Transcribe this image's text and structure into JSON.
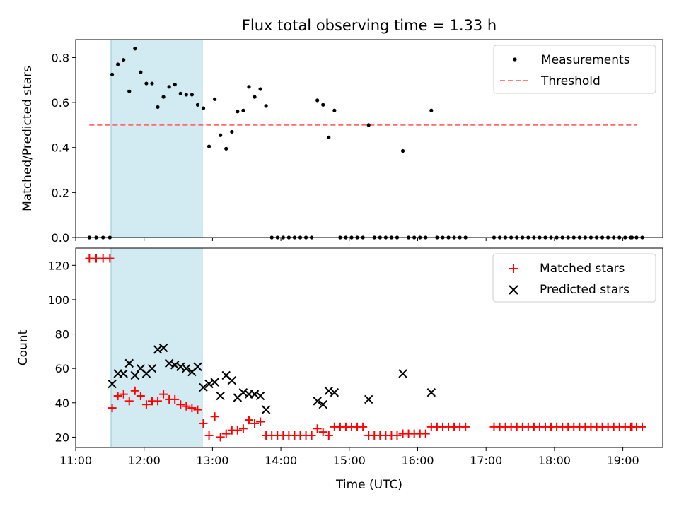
{
  "chart_data": [
    {
      "type": "scatter",
      "title": "Flux total observing time = 1.33 h",
      "xlabel": "",
      "ylabel": "Matched/Predicted stars",
      "xlim": [
        "11:00",
        "19:35"
      ],
      "ylim": [
        0,
        0.88
      ],
      "yticks": [
        0.0,
        0.2,
        0.4,
        0.6,
        0.8
      ],
      "ytick_labels": [
        "0.0",
        "0.2",
        "0.4",
        "0.6",
        "0.8"
      ],
      "shaded_interval": {
        "start": "11:31",
        "end": "12:51",
        "color": "#add8e6"
      },
      "legend": {
        "position": "top-right",
        "entries": [
          {
            "label": "Measurements",
            "marker": "dot",
            "color": "#000000"
          },
          {
            "label": "Threshold",
            "marker": "dashed-line",
            "color": "#ff6b6b"
          }
        ]
      },
      "threshold": {
        "value": 0.5,
        "x_start": "11:12",
        "x_end": "19:12",
        "color": "#ff6b6b"
      },
      "series": [
        {
          "name": "Measurements",
          "color": "#000000",
          "points": [
            [
              "11:12",
              0.0
            ],
            [
              "11:18",
              0.0
            ],
            [
              "11:24",
              0.0
            ],
            [
              "11:30",
              0.0
            ],
            [
              "11:32",
              0.725
            ],
            [
              "11:37",
              0.77
            ],
            [
              "11:42",
              0.79
            ],
            [
              "11:47",
              0.65
            ],
            [
              "11:52",
              0.84
            ],
            [
              "11:57",
              0.735
            ],
            [
              "12:02",
              0.685
            ],
            [
              "12:07",
              0.685
            ],
            [
              "12:12",
              0.58
            ],
            [
              "12:17",
              0.625
            ],
            [
              "12:22",
              0.67
            ],
            [
              "12:27",
              0.68
            ],
            [
              "12:32",
              0.64
            ],
            [
              "12:37",
              0.635
            ],
            [
              "12:42",
              0.635
            ],
            [
              "12:47",
              0.59
            ],
            [
              "12:52",
              0.575
            ],
            [
              "12:57",
              0.405
            ],
            [
              "13:02",
              0.615
            ],
            [
              "13:07",
              0.455
            ],
            [
              "13:12",
              0.395
            ],
            [
              "13:17",
              0.47
            ],
            [
              "13:22",
              0.56
            ],
            [
              "13:27",
              0.565
            ],
            [
              "13:32",
              0.67
            ],
            [
              "13:37",
              0.625
            ],
            [
              "13:42",
              0.66
            ],
            [
              "13:47",
              0.585
            ],
            [
              "13:52",
              0.0
            ],
            [
              "13:57",
              0.0
            ],
            [
              "14:02",
              0.0
            ],
            [
              "14:07",
              0.0
            ],
            [
              "14:12",
              0.0
            ],
            [
              "14:17",
              0.0
            ],
            [
              "14:22",
              0.0
            ],
            [
              "14:27",
              0.0
            ],
            [
              "14:32",
              0.61
            ],
            [
              "14:37",
              0.59
            ],
            [
              "14:42",
              0.445
            ],
            [
              "14:47",
              0.565
            ],
            [
              "14:52",
              0.0
            ],
            [
              "14:57",
              0.0
            ],
            [
              "15:02",
              0.0
            ],
            [
              "15:07",
              0.0
            ],
            [
              "15:12",
              0.0
            ],
            [
              "15:17",
              0.5
            ],
            [
              "15:22",
              0.0
            ],
            [
              "15:27",
              0.0
            ],
            [
              "15:32",
              0.0
            ],
            [
              "15:37",
              0.0
            ],
            [
              "15:42",
              0.0
            ],
            [
              "15:47",
              0.385
            ],
            [
              "15:52",
              0.0
            ],
            [
              "15:57",
              0.0
            ],
            [
              "16:02",
              0.0
            ],
            [
              "16:07",
              0.0
            ],
            [
              "16:12",
              0.565
            ],
            [
              "16:17",
              0.0
            ],
            [
              "16:22",
              0.0
            ],
            [
              "16:27",
              0.0
            ],
            [
              "16:32",
              0.0
            ],
            [
              "16:37",
              0.0
            ],
            [
              "16:42",
              0.0
            ],
            [
              "17:07",
              0.0
            ],
            [
              "17:12",
              0.0
            ],
            [
              "17:17",
              0.0
            ],
            [
              "17:22",
              0.0
            ],
            [
              "17:27",
              0.0
            ],
            [
              "17:32",
              0.0
            ],
            [
              "17:37",
              0.0
            ],
            [
              "17:42",
              0.0
            ],
            [
              "17:47",
              0.0
            ],
            [
              "17:52",
              0.0
            ],
            [
              "17:57",
              0.0
            ],
            [
              "18:02",
              0.0
            ],
            [
              "18:07",
              0.0
            ],
            [
              "18:12",
              0.0
            ],
            [
              "18:17",
              0.0
            ],
            [
              "18:22",
              0.0
            ],
            [
              "18:27",
              0.0
            ],
            [
              "18:32",
              0.0
            ],
            [
              "18:37",
              0.0
            ],
            [
              "18:42",
              0.0
            ],
            [
              "18:47",
              0.0
            ],
            [
              "18:52",
              0.0
            ],
            [
              "18:57",
              0.0
            ],
            [
              "19:02",
              0.0
            ],
            [
              "19:07",
              0.0
            ],
            [
              "19:08",
              0.0
            ],
            [
              "19:12",
              0.0
            ],
            [
              "19:17",
              0.0
            ]
          ]
        }
      ]
    },
    {
      "type": "scatter",
      "title": "",
      "xlabel": "Time (UTC)",
      "ylabel": "Count",
      "xlim": [
        "11:00",
        "19:35"
      ],
      "ylim": [
        14,
        130
      ],
      "yticks": [
        20,
        40,
        60,
        80,
        100,
        120
      ],
      "ytick_labels": [
        "20",
        "40",
        "60",
        "80",
        "100",
        "120"
      ],
      "xticks": [
        "11:00",
        "12:00",
        "13:00",
        "14:00",
        "15:00",
        "16:00",
        "17:00",
        "18:00",
        "19:00"
      ],
      "xtick_labels": [
        "11:00",
        "12:00",
        "13:00",
        "14:00",
        "15:00",
        "16:00",
        "17:00",
        "18:00",
        "19:00"
      ],
      "shaded_interval": {
        "start": "11:31",
        "end": "12:51",
        "color": "#add8e6"
      },
      "legend": {
        "position": "top-right",
        "entries": [
          {
            "label": "Matched stars",
            "marker": "plus",
            "color": "#ff0000"
          },
          {
            "label": "Predicted stars",
            "marker": "x",
            "color": "#000000"
          }
        ]
      },
      "series": [
        {
          "name": "Matched stars",
          "marker": "plus",
          "color": "#ff0000",
          "points": [
            [
              "11:12",
              124
            ],
            [
              "11:18",
              124
            ],
            [
              "11:24",
              124
            ],
            [
              "11:30",
              124
            ],
            [
              "11:32",
              37
            ],
            [
              "11:37",
              44
            ],
            [
              "11:42",
              45
            ],
            [
              "11:47",
              41
            ],
            [
              "11:52",
              47
            ],
            [
              "11:57",
              44
            ],
            [
              "12:02",
              39
            ],
            [
              "12:07",
              41
            ],
            [
              "12:12",
              41
            ],
            [
              "12:17",
              45
            ],
            [
              "12:22",
              42
            ],
            [
              "12:27",
              42
            ],
            [
              "12:32",
              39
            ],
            [
              "12:37",
              38
            ],
            [
              "12:42",
              37
            ],
            [
              "12:47",
              36
            ],
            [
              "12:52",
              28
            ],
            [
              "12:57",
              21
            ],
            [
              "13:02",
              32
            ],
            [
              "13:07",
              20
            ],
            [
              "13:12",
              22
            ],
            [
              "13:17",
              24
            ],
            [
              "13:22",
              24
            ],
            [
              "13:27",
              25
            ],
            [
              "13:32",
              30
            ],
            [
              "13:37",
              28
            ],
            [
              "13:42",
              29
            ],
            [
              "13:47",
              21
            ],
            [
              "13:52",
              21
            ],
            [
              "13:57",
              21
            ],
            [
              "14:02",
              21
            ],
            [
              "14:07",
              21
            ],
            [
              "14:12",
              21
            ],
            [
              "14:17",
              21
            ],
            [
              "14:22",
              21
            ],
            [
              "14:27",
              21
            ],
            [
              "14:32",
              25
            ],
            [
              "14:37",
              23
            ],
            [
              "14:42",
              21
            ],
            [
              "14:47",
              26
            ],
            [
              "14:52",
              26
            ],
            [
              "14:57",
              26
            ],
            [
              "15:02",
              26
            ],
            [
              "15:07",
              26
            ],
            [
              "15:12",
              26
            ],
            [
              "15:17",
              21
            ],
            [
              "15:22",
              21
            ],
            [
              "15:27",
              21
            ],
            [
              "15:32",
              21
            ],
            [
              "15:37",
              21
            ],
            [
              "15:42",
              21
            ],
            [
              "15:47",
              22
            ],
            [
              "15:52",
              22
            ],
            [
              "15:57",
              22
            ],
            [
              "16:02",
              22
            ],
            [
              "16:07",
              22
            ],
            [
              "16:12",
              26
            ],
            [
              "16:17",
              26
            ],
            [
              "16:22",
              26
            ],
            [
              "16:27",
              26
            ],
            [
              "16:32",
              26
            ],
            [
              "16:37",
              26
            ],
            [
              "16:42",
              26
            ],
            [
              "17:07",
              26
            ],
            [
              "17:12",
              26
            ],
            [
              "17:17",
              26
            ],
            [
              "17:22",
              26
            ],
            [
              "17:27",
              26
            ],
            [
              "17:32",
              26
            ],
            [
              "17:37",
              26
            ],
            [
              "17:42",
              26
            ],
            [
              "17:47",
              26
            ],
            [
              "17:52",
              26
            ],
            [
              "17:57",
              26
            ],
            [
              "18:02",
              26
            ],
            [
              "18:07",
              26
            ],
            [
              "18:12",
              26
            ],
            [
              "18:17",
              26
            ],
            [
              "18:22",
              26
            ],
            [
              "18:27",
              26
            ],
            [
              "18:32",
              26
            ],
            [
              "18:37",
              26
            ],
            [
              "18:42",
              26
            ],
            [
              "18:47",
              26
            ],
            [
              "18:52",
              26
            ],
            [
              "18:57",
              26
            ],
            [
              "19:02",
              26
            ],
            [
              "19:07",
              26
            ],
            [
              "19:08",
              26
            ],
            [
              "19:12",
              26
            ],
            [
              "19:17",
              26
            ]
          ]
        },
        {
          "name": "Predicted stars",
          "marker": "x",
          "color": "#000000",
          "points": [
            [
              "11:32",
              51
            ],
            [
              "11:37",
              57
            ],
            [
              "11:42",
              57
            ],
            [
              "11:47",
              63
            ],
            [
              "11:52",
              56
            ],
            [
              "11:57",
              60
            ],
            [
              "12:02",
              57
            ],
            [
              "12:07",
              60
            ],
            [
              "12:12",
              71
            ],
            [
              "12:17",
              72
            ],
            [
              "12:22",
              63
            ],
            [
              "12:27",
              62
            ],
            [
              "12:32",
              61
            ],
            [
              "12:37",
              60
            ],
            [
              "12:42",
              58
            ],
            [
              "12:47",
              61
            ],
            [
              "12:52",
              49
            ],
            [
              "12:57",
              51
            ],
            [
              "13:02",
              52
            ],
            [
              "13:07",
              44
            ],
            [
              "13:12",
              56
            ],
            [
              "13:17",
              53
            ],
            [
              "13:22",
              43
            ],
            [
              "13:27",
              46
            ],
            [
              "13:32",
              45
            ],
            [
              "13:37",
              45
            ],
            [
              "13:42",
              44
            ],
            [
              "13:47",
              36
            ],
            [
              "14:32",
              41
            ],
            [
              "14:37",
              39
            ],
            [
              "14:42",
              47
            ],
            [
              "14:47",
              46
            ],
            [
              "15:17",
              42
            ],
            [
              "15:47",
              57
            ],
            [
              "16:12",
              46
            ]
          ]
        }
      ]
    }
  ]
}
